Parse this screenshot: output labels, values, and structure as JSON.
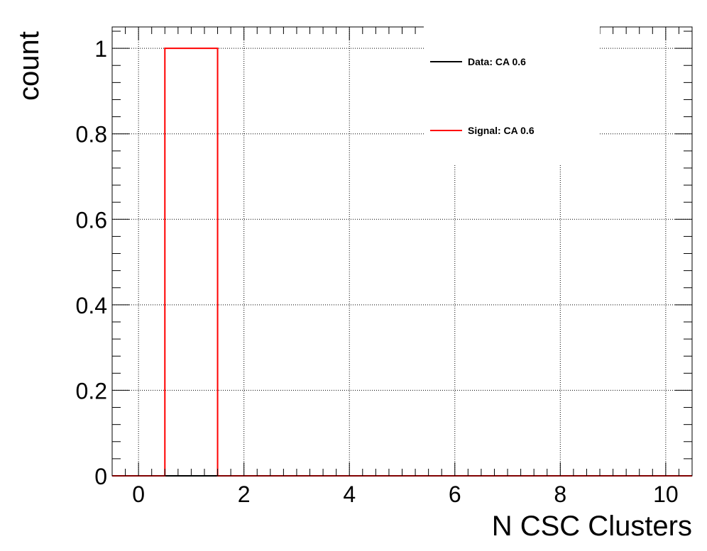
{
  "chart_data": {
    "type": "histogram",
    "xlabel": "N CSC Clusters",
    "ylabel": "count",
    "xlim": [
      -0.5,
      10.5
    ],
    "ylim": [
      0,
      1.05
    ],
    "x_ticks": [
      0,
      2,
      4,
      6,
      8,
      10
    ],
    "y_ticks": [
      0,
      0.2,
      0.4,
      0.6,
      0.8,
      1
    ],
    "y_tick_labels": [
      "0",
      "0.2",
      "0.4",
      "0.6",
      "0.8",
      "1"
    ],
    "grid": true,
    "bin_edges": [
      -0.5,
      0.5,
      1.5,
      2.5,
      3.5,
      4.5,
      5.5,
      6.5,
      7.5,
      8.5,
      9.5,
      10.5
    ],
    "series": [
      {
        "name": "Data: CA 0.6",
        "color": "#000000",
        "values": [
          0,
          0,
          0,
          0,
          0,
          0,
          0,
          0,
          0,
          0,
          0
        ]
      },
      {
        "name": "Signal: CA 0.6",
        "color": "#ff0000",
        "values": [
          0,
          1,
          0,
          0,
          0,
          0,
          0,
          0,
          0,
          0,
          0
        ]
      }
    ],
    "legend_position": "top-right"
  }
}
